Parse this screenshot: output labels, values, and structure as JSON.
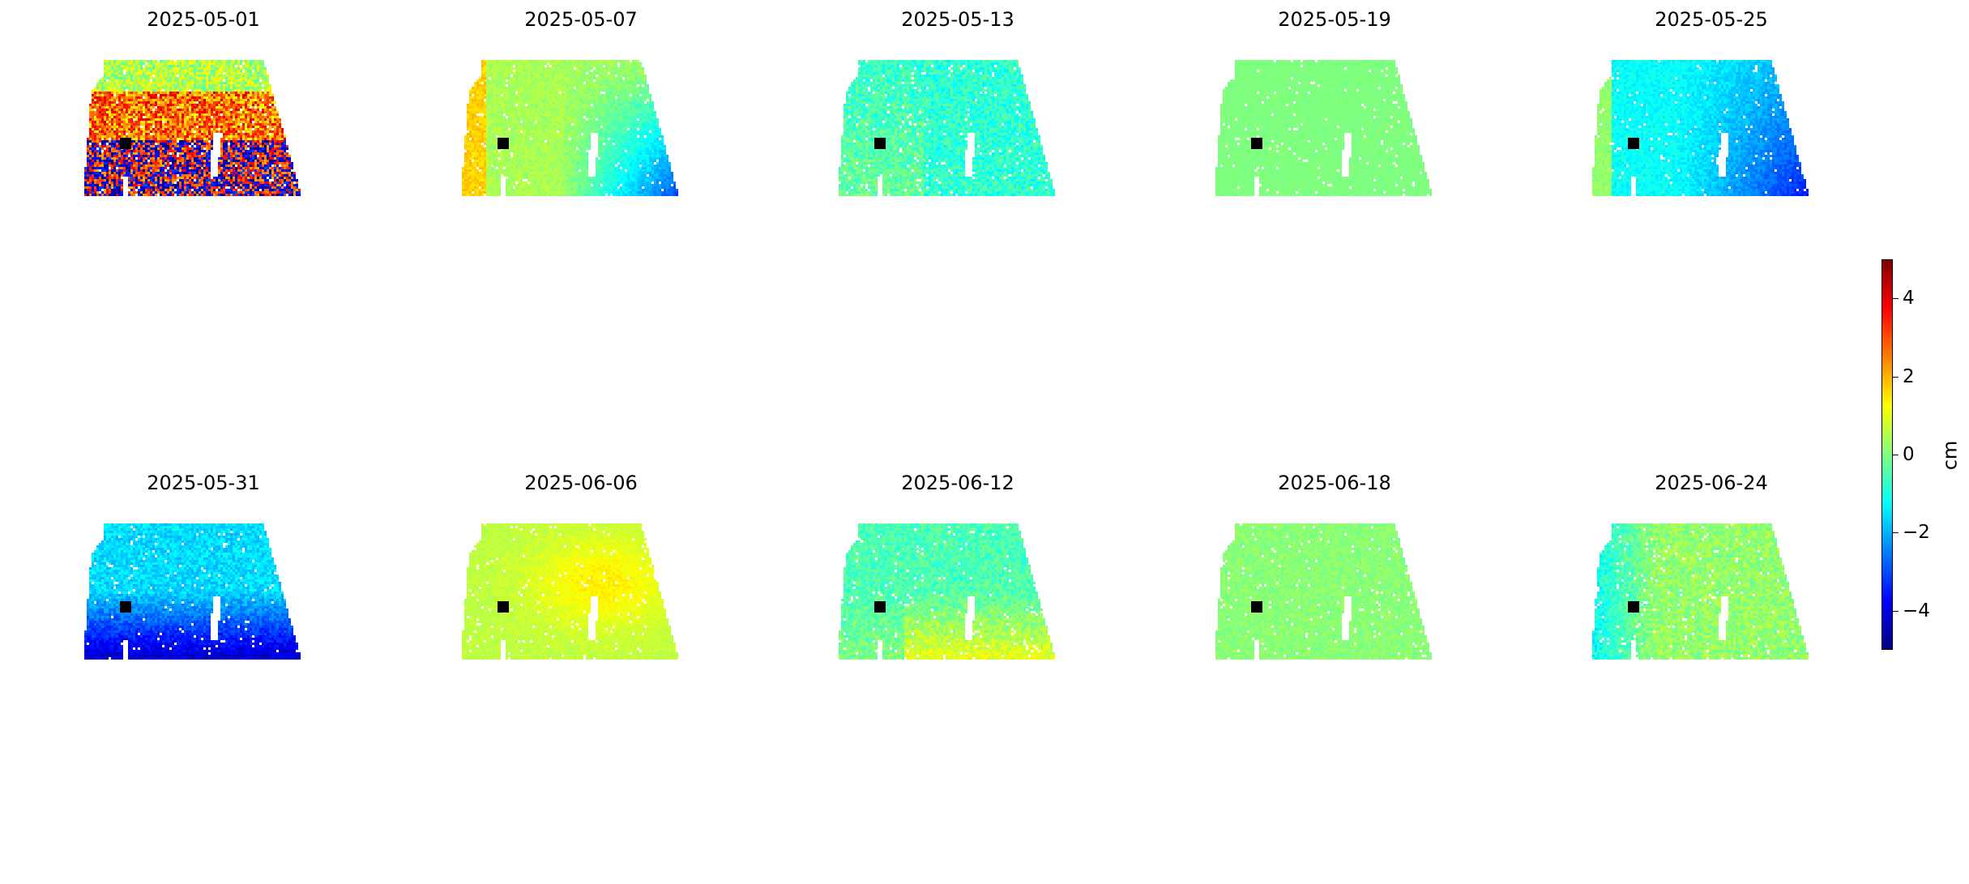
{
  "chart_data": {
    "type": "heatmap",
    "title": "",
    "panels": [
      {
        "date": "2025-05-01",
        "pattern": "noisy"
      },
      {
        "date": "2025-05-07",
        "pattern": "east-negative"
      },
      {
        "date": "2025-05-13",
        "pattern": "slight-noise"
      },
      {
        "date": "2025-05-19",
        "pattern": "flat"
      },
      {
        "date": "2025-05-25",
        "pattern": "east-negative-strong"
      },
      {
        "date": "2025-05-31",
        "pattern": "south-negative"
      },
      {
        "date": "2025-06-06",
        "pattern": "slight-positive"
      },
      {
        "date": "2025-06-12",
        "pattern": "south-positive"
      },
      {
        "date": "2025-06-18",
        "pattern": "near-flat"
      },
      {
        "date": "2025-06-24",
        "pattern": "west-negative"
      }
    ],
    "colorbar": {
      "colormap": "jet",
      "vmin": -5,
      "vmax": 5,
      "ticks": [
        -4,
        -2,
        0,
        2,
        4
      ],
      "tick_labels": [
        "−4",
        "−2",
        "0",
        "2",
        "4"
      ],
      "label": "cm"
    },
    "reference_point": {
      "color": "#000000"
    }
  }
}
